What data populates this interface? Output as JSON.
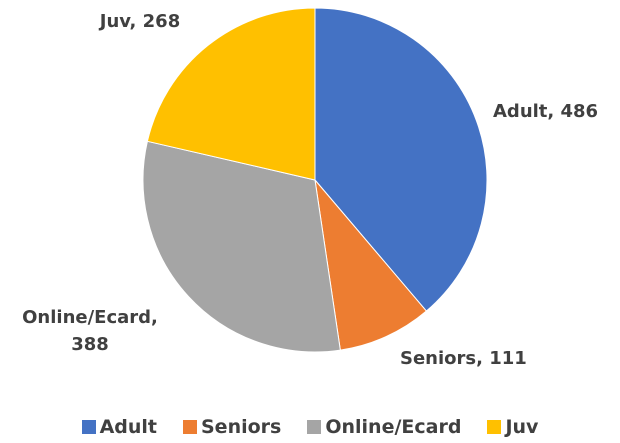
{
  "chart_data": {
    "type": "pie",
    "categories": [
      "Adult",
      "Seniors",
      "Online/Ecard",
      "Juv"
    ],
    "values": [
      486,
      111,
      388,
      268
    ],
    "value_labels": [
      "Adult, 486",
      "Seniors, 111",
      "Online/Ecard, 388",
      "Juv, 268"
    ],
    "colors": [
      "#4472c4",
      "#ed7d31",
      "#a5a5a5",
      "#ffc000"
    ],
    "legend": "bottom"
  }
}
